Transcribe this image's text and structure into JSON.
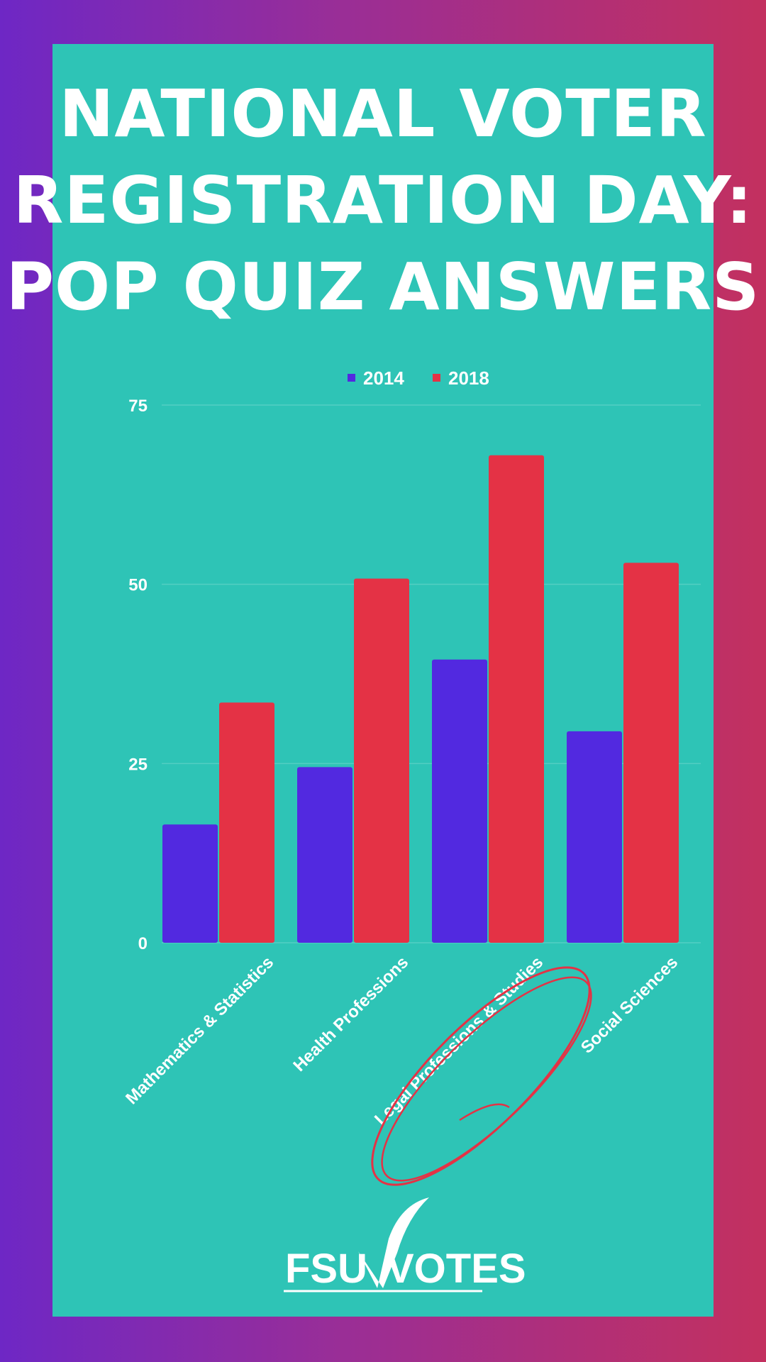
{
  "page": {
    "title_lines": [
      "NATIONAL VOTER",
      "REGISTRATION DAY:",
      "POP QUIZ ANSWERS"
    ],
    "logo": {
      "part1": "FSU",
      "part2": "VOTES"
    }
  },
  "colors": {
    "background_left": "#6e27c5",
    "background_right": "#c3305f",
    "card": "#2ec4b6",
    "series_2014": "#5229e0",
    "series_2018": "#e43245",
    "annotation": "#e43245"
  },
  "chart_data": {
    "type": "bar",
    "title": "",
    "xlabel": "",
    "ylabel": "",
    "categories": [
      "Mathematics & Statistics",
      "Health Professions",
      "Legal Professions & Studies",
      "Social Sciences"
    ],
    "series": [
      {
        "name": "2014",
        "values": [
          16.5,
          24.5,
          39.5,
          29.5
        ]
      },
      {
        "name": "2018",
        "values": [
          33.5,
          50.8,
          68,
          53
        ]
      }
    ],
    "ylim": [
      0,
      75
    ],
    "yticks": [
      "0",
      "25",
      "50",
      "75"
    ],
    "legend": "top",
    "grid": true,
    "highlighted_category": "Legal Professions & Studies"
  }
}
